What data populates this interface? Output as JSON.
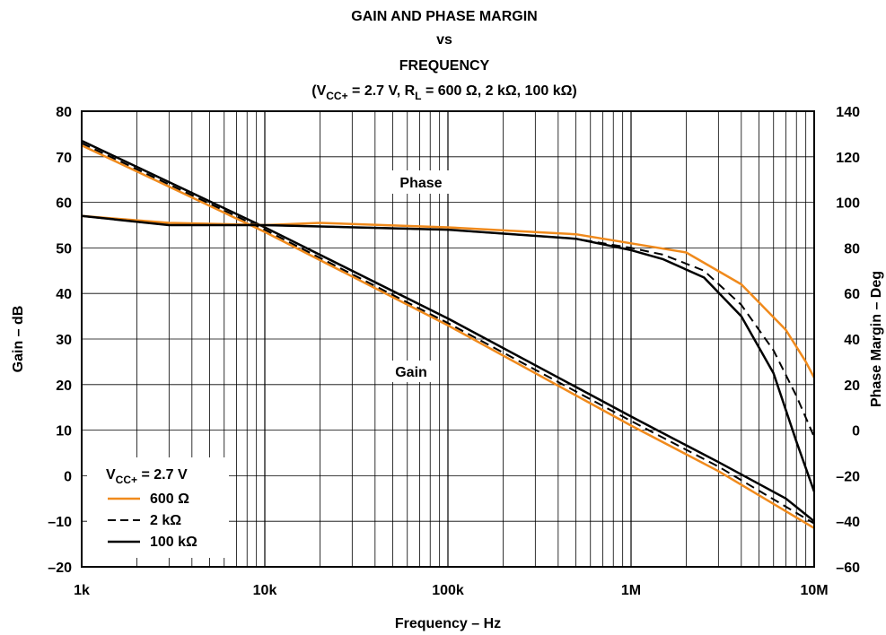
{
  "chart_data": {
    "type": "line",
    "title": {
      "line1": "GAIN AND PHASE MARGIN",
      "line2": "vs",
      "line3": "FREQUENCY",
      "line4_parts": [
        "(V",
        "CC+",
        " = 2.7 V, R",
        "L",
        " = 600 Ω, 2 kΩ, 100 kΩ)"
      ]
    },
    "xlabel": "Frequency – Hz",
    "ylabel_left": "Gain – dB",
    "ylabel_right": "Phase Margin – Deg",
    "x_scale": "log",
    "xlim": [
      1000,
      10000000
    ],
    "x_ticks": [
      {
        "value": 1000,
        "label": "1k"
      },
      {
        "value": 10000,
        "label": "10k"
      },
      {
        "value": 100000,
        "label": "100k"
      },
      {
        "value": 1000000,
        "label": "1M"
      },
      {
        "value": 10000000,
        "label": "10M"
      }
    ],
    "ylim_left": [
      -20,
      80
    ],
    "y_ticks_left": [
      "80",
      "70",
      "60",
      "50",
      "40",
      "30",
      "20",
      "10",
      "0",
      "–10",
      "–20"
    ],
    "ylim_right": [
      -60,
      140
    ],
    "y_ticks_right": [
      "140",
      "120",
      "100",
      "80",
      "60",
      "40",
      "20",
      "0",
      "–20",
      "–40",
      "–60"
    ],
    "grid": true,
    "annotations": [
      {
        "text": "Phase",
        "x": 45000,
        "y_left": 65
      },
      {
        "text": "Gain",
        "x": 45000,
        "y_left": 23
      }
    ],
    "legend": {
      "placement": "bottom-left",
      "title_parts": [
        "V",
        "CC+",
        " = 2.7 V"
      ],
      "entries": [
        {
          "label": "600 Ω",
          "color": "#f08a1c",
          "dash": "solid"
        },
        {
          "label": "2 kΩ",
          "color": "#000000",
          "dash": "dashed"
        },
        {
          "label": "100 kΩ",
          "color": "#000000",
          "dash": "solid"
        }
      ]
    },
    "series": [
      {
        "key": "gain_600",
        "axis": "left",
        "color": "#f08a1c",
        "dash": "solid",
        "points": [
          [
            1000,
            72.5
          ],
          [
            10000,
            53.5
          ],
          [
            100000,
            33
          ],
          [
            1000000,
            11
          ],
          [
            3000000,
            1
          ],
          [
            10000000,
            -11.5
          ]
        ]
      },
      {
        "key": "gain_2k",
        "axis": "left",
        "color": "#000000",
        "dash": "dashed",
        "points": [
          [
            1000,
            73
          ],
          [
            10000,
            54
          ],
          [
            100000,
            33.5
          ],
          [
            1000000,
            12
          ],
          [
            3000000,
            2
          ],
          [
            10000000,
            -10.5
          ]
        ]
      },
      {
        "key": "gain_100k",
        "axis": "left",
        "color": "#000000",
        "dash": "solid",
        "points": [
          [
            1000,
            73.5
          ],
          [
            10000,
            54.5
          ],
          [
            100000,
            34.5
          ],
          [
            1000000,
            13
          ],
          [
            3000000,
            3
          ],
          [
            7000000,
            -5
          ],
          [
            10000000,
            -10
          ]
        ]
      },
      {
        "key": "phase_600",
        "axis": "right",
        "color": "#f08a1c",
        "dash": "solid",
        "points": [
          [
            1000,
            94
          ],
          [
            3000,
            91
          ],
          [
            10000,
            90
          ],
          [
            20000,
            91
          ],
          [
            100000,
            89
          ],
          [
            500000,
            86
          ],
          [
            1000000,
            82
          ],
          [
            2000000,
            78
          ],
          [
            4000000,
            64
          ],
          [
            7000000,
            44
          ],
          [
            9000000,
            30
          ],
          [
            10000000,
            23
          ]
        ]
      },
      {
        "key": "phase_2k",
        "axis": "right",
        "color": "#000000",
        "dash": "dashed",
        "points": [
          [
            1000,
            94
          ],
          [
            3000,
            90
          ],
          [
            10000,
            90
          ],
          [
            100000,
            88
          ],
          [
            500000,
            84
          ],
          [
            1000000,
            80
          ],
          [
            1500000,
            77
          ],
          [
            2500000,
            70
          ],
          [
            4000000,
            55
          ],
          [
            6000000,
            35
          ],
          [
            8000000,
            15
          ],
          [
            10000000,
            -3
          ]
        ]
      },
      {
        "key": "phase_100k",
        "axis": "right",
        "color": "#000000",
        "dash": "solid",
        "points": [
          [
            1000,
            94
          ],
          [
            3000,
            90
          ],
          [
            10000,
            90
          ],
          [
            100000,
            88
          ],
          [
            500000,
            84
          ],
          [
            1000000,
            79
          ],
          [
            1500000,
            75
          ],
          [
            2500000,
            67
          ],
          [
            4000000,
            50
          ],
          [
            6000000,
            25
          ],
          [
            8000000,
            -5
          ],
          [
            10000000,
            -27
          ]
        ]
      }
    ]
  }
}
